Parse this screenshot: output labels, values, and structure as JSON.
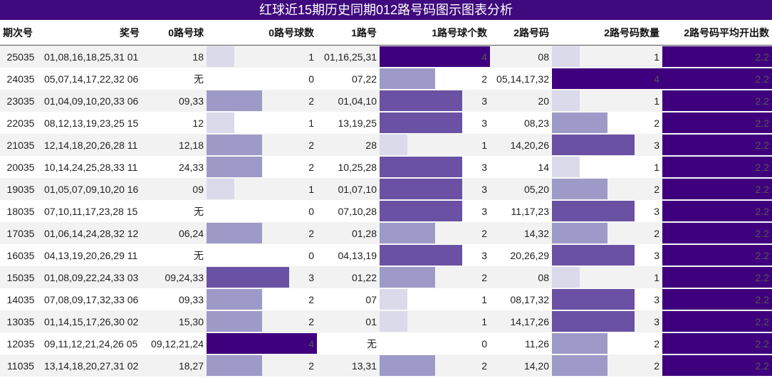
{
  "title": "红球近15期历史同期012路号码图示图表分析",
  "table": {
    "header": [
      "期次号",
      "奖号",
      "0路号球",
      "0路号球数",
      "1路号",
      "1路号球个数",
      "2路号码",
      "2路号码数量",
      "2路号码平均开出数"
    ],
    "rows": [
      [
        "25035",
        "01,08,16,18,25,31 01",
        "18",
        1,
        "01,16,25,31",
        4,
        "08",
        1,
        2.2
      ],
      [
        "24035",
        "05,07,14,17,22,32 06",
        "无",
        0,
        "07,22",
        2,
        "05,14,17,32",
        4,
        2.2
      ],
      [
        "23035",
        "01,04,09,10,20,33 06",
        "09,33",
        2,
        "01,04,10",
        3,
        "20",
        1,
        2.2
      ],
      [
        "22035",
        "08,12,13,19,23,25 15",
        "12",
        1,
        "13,19,25",
        3,
        "08,23",
        2,
        2.2
      ],
      [
        "21035",
        "12,14,18,20,26,28 11",
        "12,18",
        2,
        "28",
        1,
        "14,20,26",
        3,
        2.2
      ],
      [
        "20035",
        "10,14,24,25,28,33 11",
        "24,33",
        2,
        "10,25,28",
        3,
        "14",
        1,
        2.2
      ],
      [
        "19035",
        "01,05,07,09,10,20 16",
        "09",
        1,
        "01,07,10",
        3,
        "05,20",
        2,
        2.2
      ],
      [
        "18035",
        "07,10,11,17,23,28 15",
        "无",
        0,
        "07,10,28",
        3,
        "11,17,23",
        3,
        2.2
      ],
      [
        "17035",
        "01,06,14,24,28,32 12",
        "06,24",
        2,
        "01,28",
        2,
        "14,32",
        2,
        2.2
      ],
      [
        "16035",
        "04,13,19,20,26,29 11",
        "无",
        0,
        "04,13,19",
        3,
        "20,26,29",
        3,
        2.2
      ],
      [
        "15035",
        "01,08,09,22,24,33 03",
        "09,24,33",
        3,
        "01,22",
        2,
        "08",
        1,
        2.2
      ],
      [
        "14035",
        "07,08,09,17,32,33 06",
        "09,33",
        2,
        "07",
        1,
        "08,17,32",
        3,
        2.2
      ],
      [
        "13035",
        "01,14,15,17,26,30 02",
        "15,30",
        2,
        "01",
        1,
        "14,17,26",
        3,
        2.2
      ],
      [
        "12035",
        "09,11,12,21,24,26 05",
        "09,12,21,24",
        4,
        "无",
        0,
        "11,26",
        2,
        2.2
      ],
      [
        "11035",
        "13,14,18,20,27,31 02",
        "18,27",
        2,
        "13,31",
        2,
        "14,20",
        2,
        2.2
      ]
    ]
  }
}
